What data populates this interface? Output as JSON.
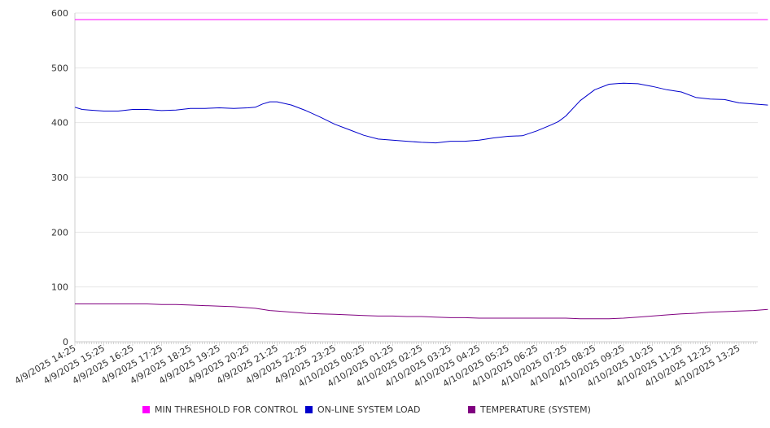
{
  "chart_data": {
    "type": "line",
    "ylim": [
      0,
      600
    ],
    "yticks": [
      0,
      100,
      200,
      300,
      400,
      500,
      600
    ],
    "x_tick_labels": [
      "4/9/2025 14:25",
      "4/9/2025 15:25",
      "4/9/2025 16:25",
      "4/9/2025 17:25",
      "4/9/2025 18:25",
      "4/9/2025 19:25",
      "4/9/2025 20:25",
      "4/9/2025 21:25",
      "4/9/2025 22:25",
      "4/9/2025 23:25",
      "4/10/2025 00:25",
      "4/10/2025 01:25",
      "4/10/2025 02:25",
      "4/10/2025 03:25",
      "4/10/2025 04:25",
      "4/10/2025 05:25",
      "4/10/2025 06:25",
      "4/10/2025 07:25",
      "4/10/2025 08:25",
      "4/10/2025 09:25",
      "4/10/2025 10:25",
      "4/10/2025 11:25",
      "4/10/2025 12:25",
      "4/10/2025 13:25"
    ],
    "grid": true,
    "legend_position": "bottom",
    "x_hours": [
      0,
      0.25,
      0.5,
      1,
      1.5,
      2,
      2.5,
      3,
      3.5,
      4,
      4.5,
      5,
      5.5,
      6,
      6.25,
      6.5,
      6.75,
      7,
      7.5,
      8,
      8.5,
      9,
      9.5,
      10,
      10.5,
      11,
      11.5,
      12,
      12.5,
      13,
      13.5,
      14,
      14.5,
      15,
      15.5,
      16,
      16.5,
      16.75,
      17,
      17.5,
      18,
      18.5,
      19,
      19.5,
      20,
      20.5,
      21,
      21.5,
      22,
      22.5,
      23,
      23.5,
      24
    ],
    "series": [
      {
        "name": "MIN THRESHOLD FOR CONTROL",
        "color": "#ff00ff",
        "values": [
          588,
          588,
          588,
          588,
          588,
          588,
          588,
          588,
          588,
          588,
          588,
          588,
          588,
          588,
          588,
          588,
          588,
          588,
          588,
          588,
          588,
          588,
          588,
          588,
          588,
          588,
          588,
          588,
          588,
          588,
          588,
          588,
          588,
          588,
          588,
          588,
          588,
          588,
          588,
          588,
          588,
          588,
          588,
          588,
          588,
          588,
          588,
          588,
          588,
          588,
          588,
          588,
          588
        ]
      },
      {
        "name": "ON-LINE SYSTEM LOAD",
        "color": "#0000cc",
        "values": [
          428,
          424,
          423,
          421,
          421,
          424,
          424,
          422,
          423,
          426,
          426,
          427,
          426,
          427,
          428,
          434,
          438,
          438,
          432,
          422,
          410,
          397,
          387,
          377,
          370,
          368,
          366,
          364,
          363,
          366,
          366,
          368,
          372,
          375,
          376,
          385,
          396,
          402,
          412,
          440,
          460,
          470,
          472,
          471,
          466,
          460,
          456,
          446,
          443,
          442,
          436,
          434,
          432
        ]
      },
      {
        "name": "TEMPERATURE (SYSTEM)",
        "color": "#800080",
        "values": [
          69,
          69,
          69,
          69,
          69,
          69,
          69,
          68,
          68,
          67,
          66,
          65,
          64,
          62,
          61,
          59,
          57,
          56,
          54,
          52,
          51,
          50,
          49,
          48,
          47,
          47,
          46,
          46,
          45,
          44,
          44,
          43,
          43,
          43,
          43,
          43,
          43,
          43,
          43,
          42,
          42,
          42,
          43,
          45,
          47,
          49,
          51,
          52,
          54,
          55,
          56,
          57,
          59
        ]
      }
    ]
  }
}
